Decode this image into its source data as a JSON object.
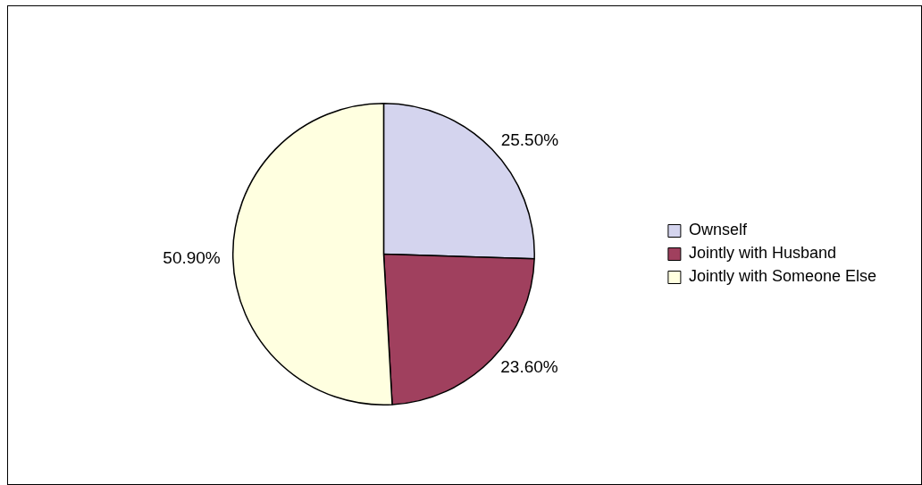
{
  "chart_data": {
    "type": "pie",
    "categories": [
      "Ownself",
      "Jointly with Husband",
      "Jointly with Someone Else"
    ],
    "values": [
      25.5,
      23.6,
      50.9
    ],
    "colors": [
      "#d4d4ee",
      "#a0405e",
      "#ffffe0"
    ],
    "value_labels": [
      "25.50%",
      "23.60%",
      "50.90%"
    ],
    "legend": "right"
  }
}
